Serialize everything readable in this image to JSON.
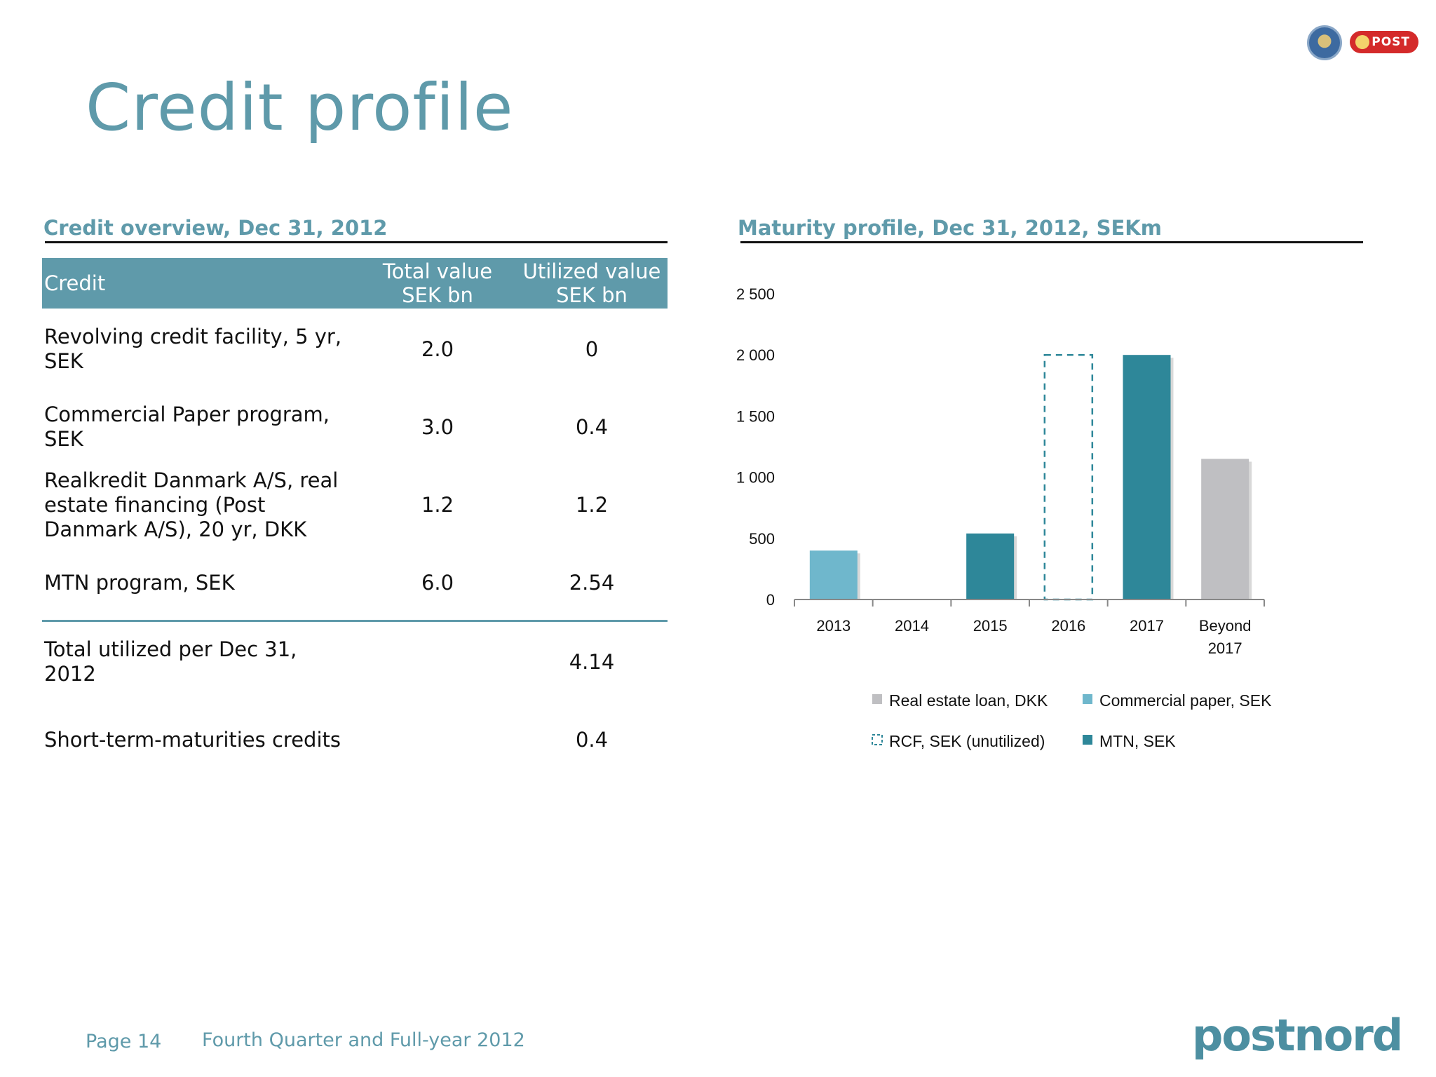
{
  "title": "Credit profile",
  "credit_overview": {
    "heading": "Credit overview, Dec 31, 2012",
    "columns": {
      "credit": "Credit",
      "total_l1": "Total value",
      "total_l2": "SEK bn",
      "utilized_l1": "Utilized value",
      "utilized_l2": "SEK bn"
    },
    "rows": [
      {
        "l1": "Revolving credit facility, 5 yr,",
        "l2": "SEK",
        "l3": "",
        "total": "2.0",
        "utilized": "0"
      },
      {
        "l1": "Commercial Paper program,",
        "l2": "SEK",
        "l3": "",
        "total": "3.0",
        "utilized": "0.4"
      },
      {
        "l1": "Realkredit Danmark A/S, real",
        "l2": "estate financing (Post",
        "l3": "Danmark A/S), 20 yr, DKK",
        "total": "1.2",
        "utilized": "1.2"
      },
      {
        "l1": "MTN program, SEK",
        "l2": "",
        "l3": "",
        "total": "6.0",
        "utilized": "2.54"
      }
    ],
    "totals": [
      {
        "l1": "Total utilized per Dec 31,",
        "l2": "2012",
        "total": "",
        "utilized": "4.14"
      },
      {
        "l1": "Short-term-maturities credits",
        "l2": "",
        "total": "",
        "utilized": "0.4"
      }
    ]
  },
  "maturity_profile": {
    "heading": "Maturity profile, Dec 31, 2012, SEKm"
  },
  "chart_data": {
    "type": "bar",
    "categories": [
      {
        "l1": "2013",
        "l2": ""
      },
      {
        "l1": "2014",
        "l2": ""
      },
      {
        "l1": "2015",
        "l2": ""
      },
      {
        "l1": "2016",
        "l2": ""
      },
      {
        "l1": "2017",
        "l2": ""
      },
      {
        "l1": "Beyond",
        "l2": "2017"
      }
    ],
    "series": [
      {
        "name": "Real estate loan, DKK",
        "color": "#bfbfc2",
        "style": "solid",
        "values": [
          0,
          0,
          0,
          0,
          0,
          1150
        ]
      },
      {
        "name": "Commercial paper, SEK",
        "color": "#6fb7cc",
        "style": "solid",
        "values": [
          400,
          0,
          0,
          0,
          0,
          0
        ]
      },
      {
        "name": "RCF, SEK (unutilized)",
        "color": "#2e8799",
        "style": "dashed",
        "values": [
          0,
          0,
          0,
          2000,
          0,
          0
        ]
      },
      {
        "name": "MTN, SEK",
        "color": "#2e8799",
        "style": "solid",
        "values": [
          0,
          0,
          540,
          0,
          2000,
          0
        ]
      }
    ],
    "ylim": [
      0,
      2500
    ],
    "yticks": [
      "0",
      "500",
      "1 000",
      "1 500",
      "2 000",
      "2 500"
    ],
    "grid": false,
    "legend_placement": "bottom"
  },
  "footer": {
    "page": "Page 14",
    "title": "Fourth Quarter and Full-year 2012"
  },
  "logos": {
    "post_badge": "POST",
    "brand": "postnord"
  }
}
